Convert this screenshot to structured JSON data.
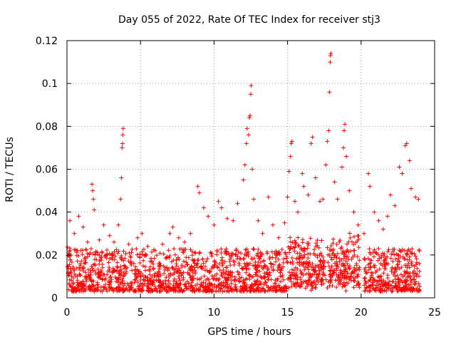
{
  "chart_data": {
    "type": "scatter",
    "title": "Day 055 of 2022, Rate Of TEC Index for receiver stj3",
    "xlabel": "GPS time / hours",
    "ylabel": "ROTI / TECUs",
    "xlim": [
      0,
      25
    ],
    "ylim": [
      0,
      0.12
    ],
    "xticks": [
      0,
      5,
      10,
      15,
      20,
      25
    ],
    "yticks": [
      0,
      0.02,
      0.04,
      0.06,
      0.08,
      0.1,
      0.12
    ],
    "xtick_labels": [
      "0",
      "5",
      "10",
      "15",
      "20",
      "25"
    ],
    "ytick_labels": [
      "0",
      "0.02",
      "0.04",
      "0.06",
      "0.08",
      "0.1",
      "0.12"
    ],
    "grid": true,
    "marker": "+",
    "color": "#ff0000",
    "series": [
      {
        "name": "ROTI",
        "description": "dense band of samples 0.002-0.025 TECU/s across 0-24 h with a data gap near 20 h; representative elevated samples listed",
        "points": [
          [
            0.2,
            0.036
          ],
          [
            0.5,
            0.03
          ],
          [
            0.8,
            0.038
          ],
          [
            1.1,
            0.033
          ],
          [
            1.4,
            0.026
          ],
          [
            1.7,
            0.053
          ],
          [
            1.75,
            0.05
          ],
          [
            1.8,
            0.046
          ],
          [
            1.85,
            0.041
          ],
          [
            2.2,
            0.027
          ],
          [
            2.5,
            0.034
          ],
          [
            2.9,
            0.029
          ],
          [
            3.2,
            0.026
          ],
          [
            3.5,
            0.034
          ],
          [
            3.65,
            0.046
          ],
          [
            3.7,
            0.056
          ],
          [
            3.75,
            0.07
          ],
          [
            3.78,
            0.072
          ],
          [
            3.8,
            0.076
          ],
          [
            3.82,
            0.079
          ],
          [
            4.2,
            0.025
          ],
          [
            4.8,
            0.028
          ],
          [
            5.1,
            0.03
          ],
          [
            5.5,
            0.024
          ],
          [
            6.0,
            0.022
          ],
          [
            6.5,
            0.025
          ],
          [
            7.0,
            0.03
          ],
          [
            7.2,
            0.033
          ],
          [
            7.6,
            0.028
          ],
          [
            8.0,
            0.026
          ],
          [
            8.4,
            0.03
          ],
          [
            8.9,
            0.052
          ],
          [
            9.0,
            0.049
          ],
          [
            9.3,
            0.042
          ],
          [
            9.6,
            0.038
          ],
          [
            10.0,
            0.034
          ],
          [
            10.3,
            0.045
          ],
          [
            10.5,
            0.042
          ],
          [
            10.9,
            0.037
          ],
          [
            11.3,
            0.036
          ],
          [
            11.6,
            0.044
          ],
          [
            12.0,
            0.055
          ],
          [
            12.1,
            0.062
          ],
          [
            12.2,
            0.072
          ],
          [
            12.25,
            0.079
          ],
          [
            12.35,
            0.076
          ],
          [
            12.4,
            0.084
          ],
          [
            12.45,
            0.085
          ],
          [
            12.5,
            0.095
          ],
          [
            12.52,
            0.099
          ],
          [
            12.6,
            0.06
          ],
          [
            12.7,
            0.046
          ],
          [
            13.0,
            0.036
          ],
          [
            13.3,
            0.03
          ],
          [
            13.7,
            0.047
          ],
          [
            14.0,
            0.034
          ],
          [
            14.4,
            0.028
          ],
          [
            14.8,
            0.035
          ],
          [
            15.0,
            0.047
          ],
          [
            15.1,
            0.059
          ],
          [
            15.2,
            0.066
          ],
          [
            15.25,
            0.072
          ],
          [
            15.3,
            0.073
          ],
          [
            15.5,
            0.045
          ],
          [
            15.7,
            0.04
          ],
          [
            16.0,
            0.058
          ],
          [
            16.1,
            0.052
          ],
          [
            16.4,
            0.048
          ],
          [
            16.6,
            0.072
          ],
          [
            16.7,
            0.075
          ],
          [
            16.9,
            0.056
          ],
          [
            17.2,
            0.045
          ],
          [
            17.4,
            0.046
          ],
          [
            17.6,
            0.062
          ],
          [
            17.7,
            0.073
          ],
          [
            17.8,
            0.078
          ],
          [
            17.85,
            0.096
          ],
          [
            17.9,
            0.11
          ],
          [
            17.92,
            0.113
          ],
          [
            17.95,
            0.114
          ],
          [
            18.2,
            0.054
          ],
          [
            18.4,
            0.046
          ],
          [
            18.7,
            0.061
          ],
          [
            18.8,
            0.07
          ],
          [
            18.85,
            0.078
          ],
          [
            18.9,
            0.081
          ],
          [
            19.0,
            0.066
          ],
          [
            19.2,
            0.05
          ],
          [
            19.5,
            0.04
          ],
          [
            19.8,
            0.034
          ],
          [
            20.2,
            0.03
          ],
          [
            20.5,
            0.058
          ],
          [
            20.6,
            0.052
          ],
          [
            20.9,
            0.04
          ],
          [
            21.2,
            0.036
          ],
          [
            21.5,
            0.032
          ],
          [
            21.8,
            0.038
          ],
          [
            22.0,
            0.048
          ],
          [
            22.3,
            0.043
          ],
          [
            22.6,
            0.061
          ],
          [
            22.8,
            0.058
          ],
          [
            23.0,
            0.071
          ],
          [
            23.1,
            0.072
          ],
          [
            23.3,
            0.064
          ],
          [
            23.4,
            0.051
          ],
          [
            23.7,
            0.047
          ],
          [
            23.9,
            0.046
          ]
        ]
      }
    ]
  }
}
